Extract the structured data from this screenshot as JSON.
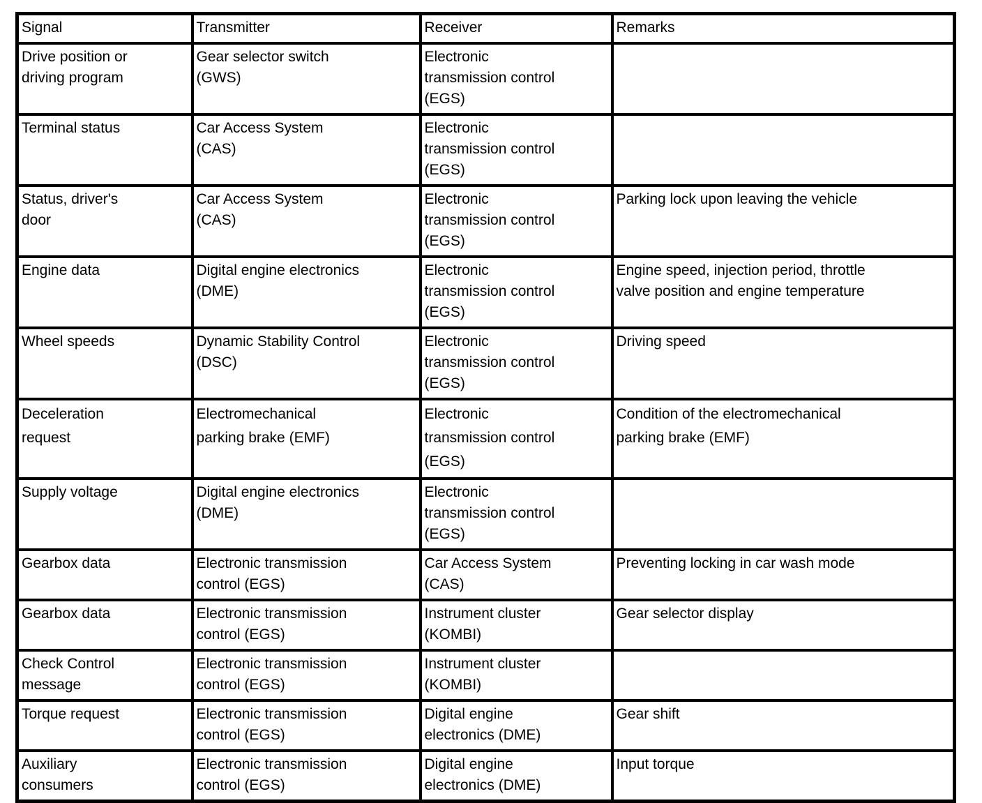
{
  "table": {
    "columns": [
      "Signal",
      "Transmitter",
      "Receiver",
      "Remarks"
    ],
    "border_color": "#000000",
    "text_color": "#000000",
    "background_color": "#ffffff",
    "rows": [
      {
        "signal": [
          "Drive position or",
          "driving program"
        ],
        "transmitter": [
          "Gear selector switch",
          "(GWS)"
        ],
        "receiver": [
          "Electronic",
          "transmission control",
          "(EGS)"
        ],
        "remarks": []
      },
      {
        "signal": [
          "Terminal status"
        ],
        "transmitter": [
          "Car Access System",
          "(CAS)"
        ],
        "receiver": [
          "Electronic",
          "transmission control",
          "(EGS)"
        ],
        "remarks": []
      },
      {
        "signal": [
          "Status, driver's",
          "door"
        ],
        "transmitter": [
          "Car Access System",
          "(CAS)"
        ],
        "receiver": [
          "Electronic",
          "transmission control",
          "(EGS)"
        ],
        "remarks": [
          "Parking lock upon leaving the vehicle"
        ]
      },
      {
        "signal": [
          "Engine data"
        ],
        "transmitter": [
          "Digital engine electronics",
          "(DME)"
        ],
        "receiver": [
          "Electronic",
          "transmission control",
          "(EGS)"
        ],
        "remarks": [
          "Engine speed, injection period, throttle",
          "valve position and engine temperature"
        ]
      },
      {
        "signal": [
          "Wheel speeds"
        ],
        "transmitter": [
          "Dynamic Stability Control",
          "(DSC)"
        ],
        "receiver": [
          "Electronic",
          "transmission control",
          "(EGS)"
        ],
        "remarks": [
          "Driving speed"
        ]
      },
      {
        "signal": [
          "Deceleration",
          "request"
        ],
        "transmitter": [
          "Electromechanical",
          "parking brake (EMF)"
        ],
        "receiver": [
          "Electronic",
          "transmission control",
          "(EGS)"
        ],
        "remarks": [
          "Condition of the electromechanical",
          "parking brake (EMF)"
        ]
      },
      {
        "signal": [
          "Supply voltage"
        ],
        "transmitter": [
          "Digital engine electronics",
          "(DME)"
        ],
        "receiver": [
          "Electronic",
          "transmission control",
          "(EGS)"
        ],
        "remarks": []
      },
      {
        "signal": [
          "Gearbox data"
        ],
        "transmitter": [
          "Electronic transmission",
          "control (EGS)"
        ],
        "receiver": [
          "Car Access System",
          "(CAS)"
        ],
        "remarks": [
          "Preventing locking in car wash mode"
        ]
      },
      {
        "signal": [
          "Gearbox data"
        ],
        "transmitter": [
          "Electronic transmission",
          "control (EGS)"
        ],
        "receiver": [
          "Instrument cluster",
          "(KOMBI)"
        ],
        "remarks": [
          "Gear selector display"
        ]
      },
      {
        "signal": [
          "Check Control",
          "message"
        ],
        "transmitter": [
          "Electronic transmission",
          "control (EGS)"
        ],
        "receiver": [
          "Instrument cluster",
          "(KOMBI)"
        ],
        "remarks": []
      },
      {
        "signal": [
          "Torque request"
        ],
        "transmitter": [
          "Electronic transmission",
          "control (EGS)"
        ],
        "receiver": [
          "Digital engine",
          "electronics (DME)"
        ],
        "remarks": [
          "Gear shift"
        ]
      },
      {
        "signal": [
          "Auxiliary",
          "consumers"
        ],
        "transmitter": [
          "Electronic transmission",
          "control (EGS)"
        ],
        "receiver": [
          "Digital engine",
          "electronics (DME)"
        ],
        "remarks": [
          "Input torque"
        ]
      }
    ]
  }
}
